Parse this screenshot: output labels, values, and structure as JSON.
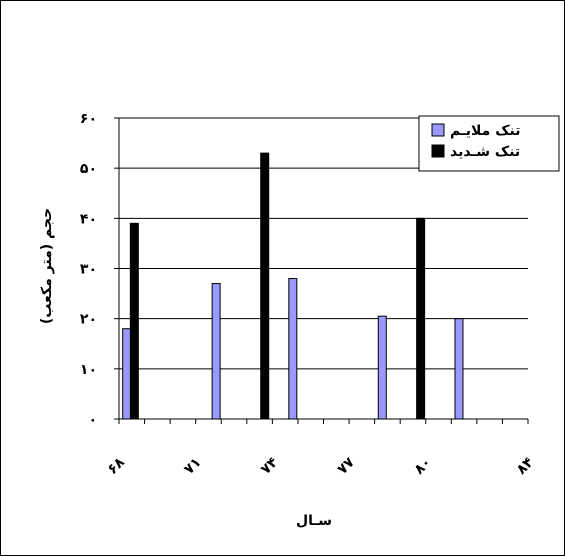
{
  "chart_data": {
    "type": "bar",
    "title": "",
    "xlabel": "سـال",
    "ylabel": "حجم (متر مکعب)",
    "ylim": [
      0,
      60
    ],
    "yticks": [
      "۰",
      "۱۰",
      "۲۰",
      "۳۰",
      "۴۰",
      "۵۰",
      "۶۰"
    ],
    "ytick_values": [
      0,
      10,
      20,
      30,
      40,
      50,
      60
    ],
    "xlim": [
      68,
      84
    ],
    "xticks": [
      "۶۸",
      "۷۱",
      "۷۴",
      "۷۷",
      "۸۰",
      "۸۴"
    ],
    "xtick_values": [
      68,
      71,
      74,
      77,
      80,
      84
    ],
    "grid": true,
    "legend_position": "top-right",
    "series": [
      {
        "name": "تنک ملایـم",
        "color": "#9999ff",
        "points": [
          [
            68.3,
            18
          ],
          [
            71.8,
            27
          ],
          [
            74.8,
            28
          ],
          [
            78.3,
            20.5
          ],
          [
            81.3,
            20
          ]
        ]
      },
      {
        "name": "تنک شـدید",
        "color": "#000000",
        "points": [
          [
            68.6,
            39
          ],
          [
            73.7,
            53
          ],
          [
            79.8,
            40
          ]
        ]
      }
    ]
  }
}
